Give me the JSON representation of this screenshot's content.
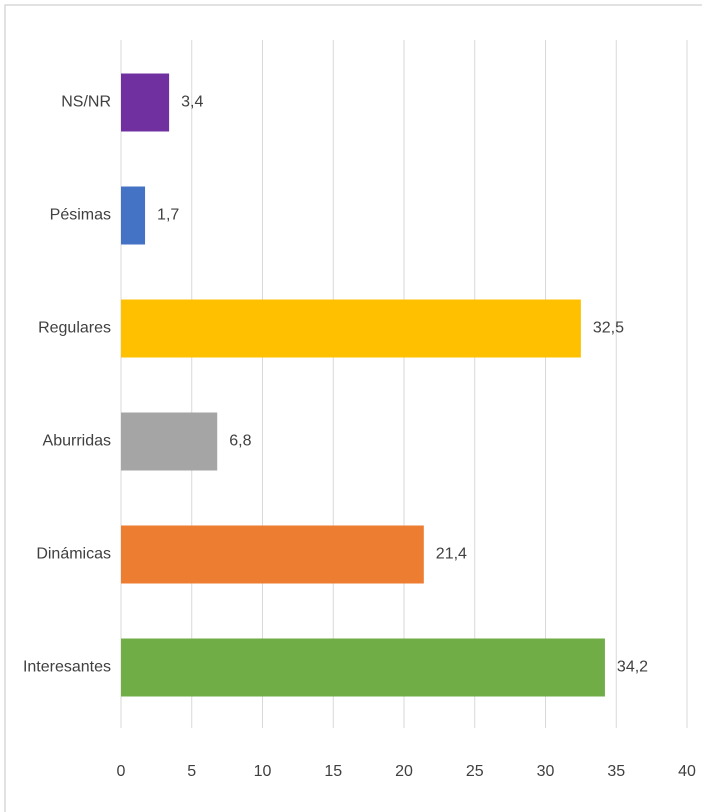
{
  "chart_data": {
    "type": "hbar",
    "categories": [
      "NS/NR",
      "Pésimas",
      "Regulares",
      "Aburridas",
      "Dinámicas",
      "Interesantes"
    ],
    "values": [
      3.4,
      1.7,
      32.5,
      6.8,
      21.4,
      34.2
    ],
    "value_labels": [
      "3,4",
      "1,7",
      "32,5",
      "6,8",
      "21,4",
      "34,2"
    ],
    "colors": [
      "#7030a0",
      "#4472c4",
      "#ffc000",
      "#a5a5a5",
      "#ed7d31",
      "#70ad47"
    ],
    "xlim": [
      0,
      40
    ],
    "xticks": [
      0,
      5,
      10,
      15,
      20,
      25,
      30,
      35,
      40
    ],
    "grid": true
  }
}
